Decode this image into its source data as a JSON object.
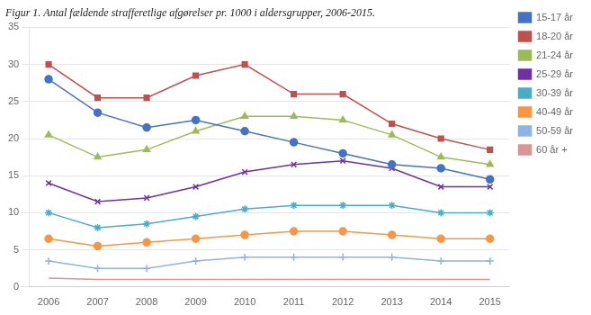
{
  "chart_data": {
    "type": "line",
    "title": "Figur 1. Antal fældende strafferetlige afgørelser pr. 1000 i aldersgrupper, 2006-2015.",
    "x": [
      2006,
      2007,
      2008,
      2009,
      2010,
      2011,
      2012,
      2013,
      2014,
      2015
    ],
    "xlim": [
      2005.6,
      2015.4
    ],
    "xticks": [
      2006,
      2007,
      2008,
      2009,
      2010,
      2011,
      2012,
      2013,
      2014,
      2015
    ],
    "ylim": [
      0,
      35
    ],
    "yticks": [
      0,
      5,
      10,
      15,
      20,
      25,
      30,
      35
    ],
    "grid": "y",
    "legend": "right",
    "series": [
      {
        "name": "15-17 år",
        "color": "#4472c4",
        "marker": "circle",
        "values": [
          28,
          23.5,
          21.5,
          22.5,
          21,
          19.5,
          18,
          16.5,
          16,
          14.5
        ]
      },
      {
        "name": "18-20 år",
        "color": "#c0504d",
        "marker": "square",
        "values": [
          30,
          25.5,
          25.5,
          28.5,
          30,
          26,
          26,
          22,
          20,
          18.5
        ]
      },
      {
        "name": "21-24 år",
        "color": "#9bbb59",
        "marker": "triangle",
        "values": [
          20.5,
          17.5,
          18.5,
          21,
          23,
          23,
          22.5,
          20.5,
          17.5,
          16.5
        ]
      },
      {
        "name": "25-29 år",
        "color": "#7030a0",
        "marker": "x",
        "values": [
          14,
          11.5,
          12,
          13.5,
          15.5,
          16.5,
          17,
          16,
          13.5,
          13.5
        ]
      },
      {
        "name": "30-39 år",
        "color": "#4bacc6",
        "marker": "star",
        "values": [
          10,
          8,
          8.5,
          9.5,
          10.5,
          11,
          11,
          11,
          10,
          10
        ]
      },
      {
        "name": "40-49 år",
        "color": "#f79646",
        "marker": "circle",
        "values": [
          6.5,
          5.5,
          6,
          6.5,
          7,
          7.5,
          7.5,
          7,
          6.5,
          6.5
        ]
      },
      {
        "name": "50-59 år",
        "color": "#8db4e2",
        "marker": "plus",
        "values": [
          3.5,
          2.5,
          2.5,
          3.5,
          4,
          4,
          4,
          4,
          3.5,
          3.5
        ]
      },
      {
        "name": "60 år +",
        "color": "#d99694",
        "marker": "none",
        "values": [
          1.2,
          1.0,
          1.0,
          1.0,
          1.0,
          1.0,
          1.0,
          1.0,
          1.0,
          1.0
        ]
      }
    ]
  }
}
